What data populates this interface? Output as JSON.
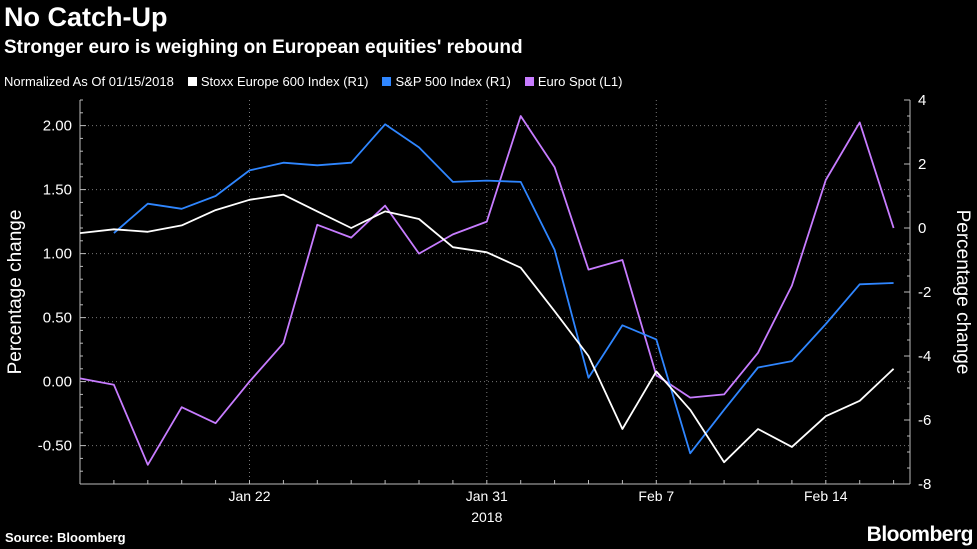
{
  "header": {
    "title": "No Catch-Up",
    "subtitle": "Stronger euro is weighing on European equities' rebound"
  },
  "legend": {
    "normalized_label": "Normalized As Of 01/15/2018",
    "items": [
      {
        "label": "Stoxx Europe 600 Index (R1)",
        "color": "#ffffff"
      },
      {
        "label": "S&P 500 Index (R1)",
        "color": "#2f86ff"
      },
      {
        "label": "Euro Spot  (L1)",
        "color": "#c77cff"
      }
    ]
  },
  "footer": {
    "source": "Source: Bloomberg",
    "brand": "Bloomberg"
  },
  "chart_data": {
    "type": "line",
    "x_tick_labels": [
      "Jan 22",
      "Jan 31",
      "Feb 7",
      "Feb 14"
    ],
    "x_tick_index": [
      5,
      12,
      17,
      22
    ],
    "x_year_label": "2018",
    "left_axis": {
      "label": "Percentage change",
      "ylim": [
        -0.8,
        2.2
      ],
      "ticks": [
        2.0,
        1.5,
        1.0,
        0.5,
        0.0,
        -0.5
      ],
      "tick_labels": [
        "2.00",
        "1.50",
        "1.00",
        "0.50",
        "0.00",
        "-0.50"
      ]
    },
    "right_axis": {
      "label": "Percentage change",
      "ylim": [
        -8.0,
        4.0
      ],
      "ticks": [
        4,
        2,
        0,
        -2,
        -4,
        -6,
        -8
      ],
      "tick_labels": [
        "4",
        "2",
        "0",
        "-2",
        "-4",
        "-6",
        "-8"
      ]
    },
    "series": [
      {
        "name": "Stoxx Europe 600 Index (R1)",
        "axis": "left",
        "color": "#ffffff",
        "x": [
          0,
          1,
          2,
          3,
          4,
          5,
          6,
          7,
          8,
          9,
          10,
          11,
          12,
          13,
          14,
          15,
          16,
          17,
          18,
          19,
          20,
          21,
          22,
          23,
          24
        ],
        "values": [
          1.16,
          1.19,
          1.17,
          1.22,
          1.34,
          1.42,
          1.46,
          1.33,
          1.2,
          1.33,
          1.27,
          1.05,
          1.01,
          0.89,
          0.55,
          0.2,
          -0.37,
          0.08,
          -0.22,
          -0.63,
          -0.37,
          -0.51,
          -0.27,
          -0.15,
          0.1
        ]
      },
      {
        "name": "S&P 500 Index (R1)",
        "axis": "left",
        "color": "#2f86ff",
        "x": [
          1,
          2,
          3,
          4,
          5,
          6,
          7,
          8,
          9,
          10,
          11,
          12,
          13,
          14,
          15,
          16,
          17,
          18,
          19,
          20,
          21,
          22,
          23,
          24
        ],
        "values": [
          1.16,
          1.39,
          1.35,
          1.45,
          1.65,
          1.71,
          1.69,
          1.71,
          2.01,
          1.83,
          1.56,
          1.57,
          1.56,
          1.03,
          0.03,
          0.44,
          0.33,
          -0.56,
          -0.22,
          0.11,
          0.16,
          0.45,
          0.76,
          0.77
        ]
      },
      {
        "name": "Euro Spot  (L1)",
        "axis": "right",
        "color": "#c77cff",
        "x": [
          0,
          1,
          2,
          3,
          4,
          5,
          6,
          7,
          8,
          9,
          10,
          11,
          12,
          13,
          14,
          15,
          16,
          17,
          18,
          19,
          20,
          21,
          22,
          23,
          24
        ],
        "values": [
          -4.7,
          -4.9,
          -7.4,
          -5.6,
          -6.1,
          -4.8,
          -3.6,
          0.1,
          -0.3,
          0.7,
          -0.8,
          -0.2,
          0.2,
          3.5,
          1.9,
          -1.3,
          -1.0,
          -4.6,
          -5.3,
          -5.2,
          -3.9,
          -1.8,
          1.5,
          3.3,
          0.0
        ]
      }
    ]
  }
}
